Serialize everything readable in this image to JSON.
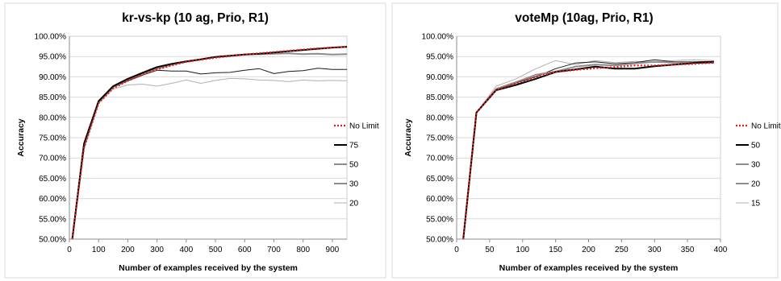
{
  "chart_data": [
    {
      "type": "line",
      "title": "kr-vs-kp (10 ag, Prio, R1)",
      "xlabel": "Number of examples received by the system",
      "ylabel": "Accuracy",
      "xlim": [
        0,
        950
      ],
      "ylim": [
        0.5,
        1.0
      ],
      "x_ticks": [
        0,
        100,
        200,
        300,
        400,
        500,
        600,
        700,
        800,
        900
      ],
      "x_tick_labels": [
        "0",
        "100",
        "200",
        "300",
        "400",
        "500",
        "600",
        "700",
        "800",
        "900"
      ],
      "y_ticks": [
        0.5,
        0.55,
        0.6,
        0.65,
        0.7,
        0.75,
        0.8,
        0.85,
        0.9,
        0.95,
        1.0
      ],
      "y_tick_labels": [
        "50.00%",
        "55.00%",
        "60.00%",
        "65.00%",
        "70.00%",
        "75.00%",
        "80.00%",
        "85.00%",
        "90.00%",
        "95.00%",
        "100.00%"
      ],
      "grid": "horizontal",
      "legend_position": "right",
      "series": [
        {
          "name": "No Limit",
          "color": "#e31a1c",
          "dash": "dotted",
          "width": 2,
          "x": [
            10,
            50,
            100,
            150,
            200,
            250,
            300,
            350,
            400,
            450,
            500,
            550,
            600,
            650,
            700,
            750,
            800,
            850,
            900,
            950
          ],
          "y": [
            0.5,
            0.725,
            0.835,
            0.872,
            0.89,
            0.905,
            0.918,
            0.928,
            0.937,
            0.942,
            0.947,
            0.951,
            0.955,
            0.958,
            0.961,
            0.964,
            0.967,
            0.97,
            0.972,
            0.974
          ]
        },
        {
          "name": "75",
          "color": "#000000",
          "width": 2,
          "x": [
            10,
            50,
            100,
            150,
            200,
            250,
            300,
            350,
            400,
            450,
            500,
            550,
            600,
            650,
            700,
            750,
            800,
            850,
            900,
            950
          ],
          "y": [
            0.5,
            0.735,
            0.84,
            0.877,
            0.895,
            0.91,
            0.924,
            0.932,
            0.938,
            0.943,
            0.949,
            0.952,
            0.955,
            0.957,
            0.96,
            0.963,
            0.966,
            0.969,
            0.972,
            0.974
          ]
        },
        {
          "name": "50",
          "color": "#8c8c8c",
          "width": 2,
          "x": [
            10,
            50,
            100,
            150,
            200,
            250,
            300,
            350,
            400,
            450,
            500,
            550,
            600,
            650,
            700,
            750,
            800,
            850,
            900,
            950
          ],
          "y": [
            0.5,
            0.73,
            0.838,
            0.875,
            0.893,
            0.908,
            0.92,
            0.93,
            0.937,
            0.943,
            0.949,
            0.952,
            0.955,
            0.956,
            0.957,
            0.958,
            0.956,
            0.957,
            0.955,
            0.956
          ]
        },
        {
          "name": "30",
          "color": "#1a1a1a",
          "width": 1,
          "x": [
            10,
            50,
            100,
            150,
            200,
            250,
            300,
            350,
            400,
            450,
            500,
            550,
            600,
            650,
            700,
            750,
            800,
            850,
            900,
            950
          ],
          "y": [
            0.5,
            0.73,
            0.838,
            0.874,
            0.89,
            0.904,
            0.916,
            0.914,
            0.914,
            0.907,
            0.91,
            0.911,
            0.916,
            0.92,
            0.908,
            0.913,
            0.915,
            0.921,
            0.918,
            0.918
          ]
        },
        {
          "name": "20",
          "color": "#b0b0b0",
          "width": 1,
          "x": [
            10,
            50,
            100,
            150,
            200,
            250,
            300,
            350,
            400,
            450,
            500,
            550,
            600,
            650,
            700,
            750,
            800,
            850,
            900,
            950
          ],
          "y": [
            0.5,
            0.72,
            0.835,
            0.87,
            0.88,
            0.882,
            0.877,
            0.884,
            0.892,
            0.884,
            0.891,
            0.896,
            0.895,
            0.892,
            0.891,
            0.888,
            0.892,
            0.89,
            0.891,
            0.89
          ]
        }
      ]
    },
    {
      "type": "line",
      "title": "voteMp (10ag, Prio, R1)",
      "xlabel": "Number of examples received by the system",
      "ylabel": "Accuracy",
      "xlim": [
        0,
        400
      ],
      "ylim": [
        0.5,
        1.0
      ],
      "x_ticks": [
        0,
        50,
        100,
        150,
        200,
        250,
        300,
        350,
        400
      ],
      "x_tick_labels": [
        "0",
        "50",
        "100",
        "150",
        "200",
        "250",
        "300",
        "350",
        "400"
      ],
      "y_ticks": [
        0.5,
        0.55,
        0.6,
        0.65,
        0.7,
        0.75,
        0.8,
        0.85,
        0.9,
        0.95,
        1.0
      ],
      "y_tick_labels": [
        "50.00%",
        "55.00%",
        "60.00%",
        "65.00%",
        "70.00%",
        "75.00%",
        "80.00%",
        "85.00%",
        "90.00%",
        "95.00%",
        "100.00%"
      ],
      "grid": "horizontal",
      "legend_position": "right",
      "series": [
        {
          "name": "No Limit",
          "color": "#e31a1c",
          "dash": "dotted",
          "width": 2,
          "x": [
            10,
            30,
            60,
            90,
            120,
            150,
            180,
            210,
            240,
            270,
            300,
            330,
            360,
            390
          ],
          "y": [
            0.5,
            0.812,
            0.868,
            0.884,
            0.9,
            0.912,
            0.917,
            0.921,
            0.924,
            0.928,
            0.928,
            0.93,
            0.932,
            0.935
          ]
        },
        {
          "name": "50",
          "color": "#000000",
          "width": 2,
          "x": [
            10,
            30,
            60,
            90,
            120,
            150,
            180,
            210,
            240,
            270,
            300,
            330,
            360,
            390
          ],
          "y": [
            0.5,
            0.812,
            0.867,
            0.88,
            0.895,
            0.912,
            0.918,
            0.925,
            0.92,
            0.92,
            0.926,
            0.93,
            0.934,
            0.937
          ]
        },
        {
          "name": "30",
          "color": "#8c8c8c",
          "width": 2,
          "x": [
            10,
            30,
            60,
            90,
            120,
            150,
            180,
            210,
            240,
            270,
            300,
            330,
            360,
            390
          ],
          "y": [
            0.5,
            0.812,
            0.87,
            0.887,
            0.905,
            0.913,
            0.925,
            0.93,
            0.928,
            0.933,
            0.937,
            0.935,
            0.935,
            0.934
          ]
        },
        {
          "name": "20",
          "color": "#1a1a1a",
          "width": 1,
          "x": [
            10,
            30,
            60,
            90,
            120,
            150,
            180,
            210,
            240,
            270,
            300,
            330,
            360,
            390
          ],
          "y": [
            0.5,
            0.812,
            0.868,
            0.885,
            0.9,
            0.92,
            0.934,
            0.937,
            0.932,
            0.935,
            0.942,
            0.937,
            0.937,
            0.938
          ]
        },
        {
          "name": "15",
          "color": "#b0b0b0",
          "width": 1,
          "x": [
            10,
            30,
            60,
            90,
            120,
            150,
            180,
            210,
            240,
            270,
            300,
            330,
            360,
            390
          ],
          "y": [
            0.5,
            0.812,
            0.877,
            0.895,
            0.92,
            0.94,
            0.93,
            0.94,
            0.935,
            0.938,
            0.935,
            0.94,
            0.942,
            0.94
          ]
        }
      ]
    }
  ]
}
